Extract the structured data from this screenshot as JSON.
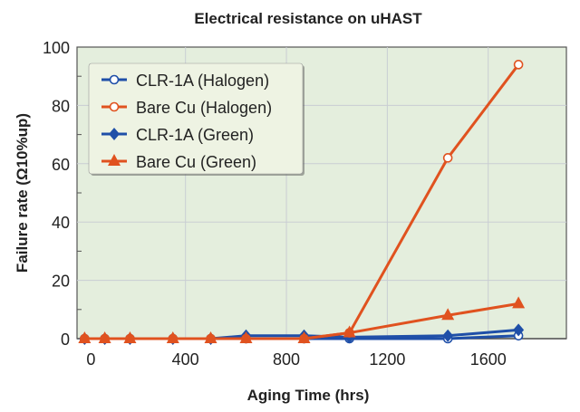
{
  "chart_data": {
    "type": "line",
    "title": "Electrical resistance on uHAST",
    "xlabel": "Aging Time (hrs)",
    "ylabel": "Failure rate (Ω10%up)",
    "xlim": [
      -30,
      1910
    ],
    "ylim": [
      0,
      100
    ],
    "xticks": [
      0,
      400,
      800,
      1200,
      1600
    ],
    "yticks": [
      0,
      20,
      40,
      60,
      80,
      100
    ],
    "grid": true,
    "legend_position": "top-left",
    "x": [
      0,
      80,
      180,
      350,
      500,
      640,
      870,
      1050,
      1440,
      1720
    ],
    "series": [
      {
        "name": "CLR-1A (Halogen)",
        "color": "#1f4fa8",
        "marker": "open-circle",
        "values": [
          0,
          0,
          0,
          0,
          0,
          0,
          0,
          0,
          0,
          1
        ]
      },
      {
        "name": "Bare Cu (Halogen)",
        "color": "#e0521f",
        "marker": "open-circle",
        "values": [
          0,
          0,
          0,
          0,
          0,
          0,
          0,
          2,
          62,
          94
        ]
      },
      {
        "name": "CLR-1A (Green)",
        "color": "#1f4fa8",
        "marker": "diamond",
        "values": [
          0,
          0,
          0,
          0,
          0,
          1,
          1,
          0.5,
          1,
          3
        ]
      },
      {
        "name": "Bare Cu (Green)",
        "color": "#e0521f",
        "marker": "triangle",
        "values": [
          0,
          0,
          0,
          0,
          0,
          0,
          0,
          2,
          8,
          12
        ]
      }
    ],
    "plot_background": "#e4eedd",
    "legend_background": "#eef3e3"
  }
}
